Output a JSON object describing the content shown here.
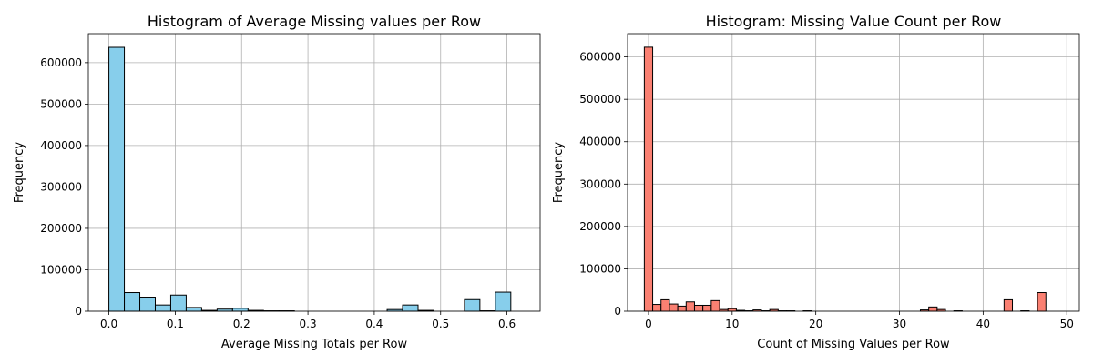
{
  "chart_data": [
    {
      "type": "bar",
      "title": "Histogram of Average Missing values per Row",
      "xlabel": "Average Missing Totals per Row",
      "ylabel": "Frequency",
      "xlim": [
        -0.031,
        0.65
      ],
      "ylim": [
        0,
        670000
      ],
      "xticks": [
        0.0,
        0.1,
        0.2,
        0.3,
        0.4,
        0.5,
        0.6
      ],
      "yticks": [
        0,
        100000,
        200000,
        300000,
        400000,
        500000,
        600000
      ],
      "grid": true,
      "bar_color": "#87CEEB",
      "edge_color": "#000000",
      "bins": [
        {
          "x0": 0.0,
          "x1": 0.0233,
          "value": 637000
        },
        {
          "x0": 0.0233,
          "x1": 0.0466,
          "value": 45000
        },
        {
          "x0": 0.0466,
          "x1": 0.0699,
          "value": 34000
        },
        {
          "x0": 0.0699,
          "x1": 0.0932,
          "value": 15000
        },
        {
          "x0": 0.0932,
          "x1": 0.1165,
          "value": 39000
        },
        {
          "x0": 0.1165,
          "x1": 0.1398,
          "value": 9000
        },
        {
          "x0": 0.1398,
          "x1": 0.1631,
          "value": 2000
        },
        {
          "x0": 0.1631,
          "x1": 0.1864,
          "value": 5000
        },
        {
          "x0": 0.1864,
          "x1": 0.2097,
          "value": 7000
        },
        {
          "x0": 0.2097,
          "x1": 0.233,
          "value": 2000
        },
        {
          "x0": 0.233,
          "x1": 0.2563,
          "value": 1000
        },
        {
          "x0": 0.2563,
          "x1": 0.2796,
          "value": 1000
        },
        {
          "x0": 0.4194,
          "x1": 0.4427,
          "value": 4000
        },
        {
          "x0": 0.4427,
          "x1": 0.466,
          "value": 15000
        },
        {
          "x0": 0.466,
          "x1": 0.4893,
          "value": 2000
        },
        {
          "x0": 0.5359,
          "x1": 0.5592,
          "value": 28000
        },
        {
          "x0": 0.5592,
          "x1": 0.5825,
          "value": 1000
        },
        {
          "x0": 0.5825,
          "x1": 0.6058,
          "value": 46000
        }
      ]
    },
    {
      "type": "bar",
      "title": "Histogram: Missing Value Count per Row",
      "xlabel": "Count of Missing Values per Row",
      "ylabel": "Frequency",
      "xlim": [
        -2.5,
        51.5
      ],
      "ylim": [
        0,
        655000
      ],
      "xticks": [
        0,
        10,
        20,
        30,
        40,
        50
      ],
      "yticks": [
        0,
        100000,
        200000,
        300000,
        400000,
        500000,
        600000
      ],
      "grid": true,
      "bar_color": "#FA8072",
      "edge_color": "#000000",
      "bins": [
        {
          "x0": -0.5,
          "x1": 0.5,
          "value": 623000
        },
        {
          "x0": 0.5,
          "x1": 1.5,
          "value": 16000
        },
        {
          "x0": 1.5,
          "x1": 2.5,
          "value": 27000
        },
        {
          "x0": 2.5,
          "x1": 3.5,
          "value": 17000
        },
        {
          "x0": 3.5,
          "x1": 4.5,
          "value": 12000
        },
        {
          "x0": 4.5,
          "x1": 5.5,
          "value": 22000
        },
        {
          "x0": 5.5,
          "x1": 6.5,
          "value": 14000
        },
        {
          "x0": 6.5,
          "x1": 7.5,
          "value": 14000
        },
        {
          "x0": 7.5,
          "x1": 8.5,
          "value": 25000
        },
        {
          "x0": 8.5,
          "x1": 9.5,
          "value": 4000
        },
        {
          "x0": 9.5,
          "x1": 10.5,
          "value": 6000
        },
        {
          "x0": 10.5,
          "x1": 11.5,
          "value": 2000
        },
        {
          "x0": 11.5,
          "x1": 12.5,
          "value": 1000
        },
        {
          "x0": 12.5,
          "x1": 13.5,
          "value": 3000
        },
        {
          "x0": 13.5,
          "x1": 14.5,
          "value": 1000
        },
        {
          "x0": 14.5,
          "x1": 15.5,
          "value": 4000
        },
        {
          "x0": 15.5,
          "x1": 16.5,
          "value": 1000
        },
        {
          "x0": 16.5,
          "x1": 17.5,
          "value": 1000
        },
        {
          "x0": 18.5,
          "x1": 19.5,
          "value": 1000
        },
        {
          "x0": 32.5,
          "x1": 33.5,
          "value": 3000
        },
        {
          "x0": 33.5,
          "x1": 34.5,
          "value": 10000
        },
        {
          "x0": 34.5,
          "x1": 35.5,
          "value": 4000
        },
        {
          "x0": 36.5,
          "x1": 37.5,
          "value": 1000
        },
        {
          "x0": 42.5,
          "x1": 43.5,
          "value": 27000
        },
        {
          "x0": 44.5,
          "x1": 45.5,
          "value": 1000
        },
        {
          "x0": 46.5,
          "x1": 47.5,
          "value": 44000
        }
      ]
    }
  ]
}
